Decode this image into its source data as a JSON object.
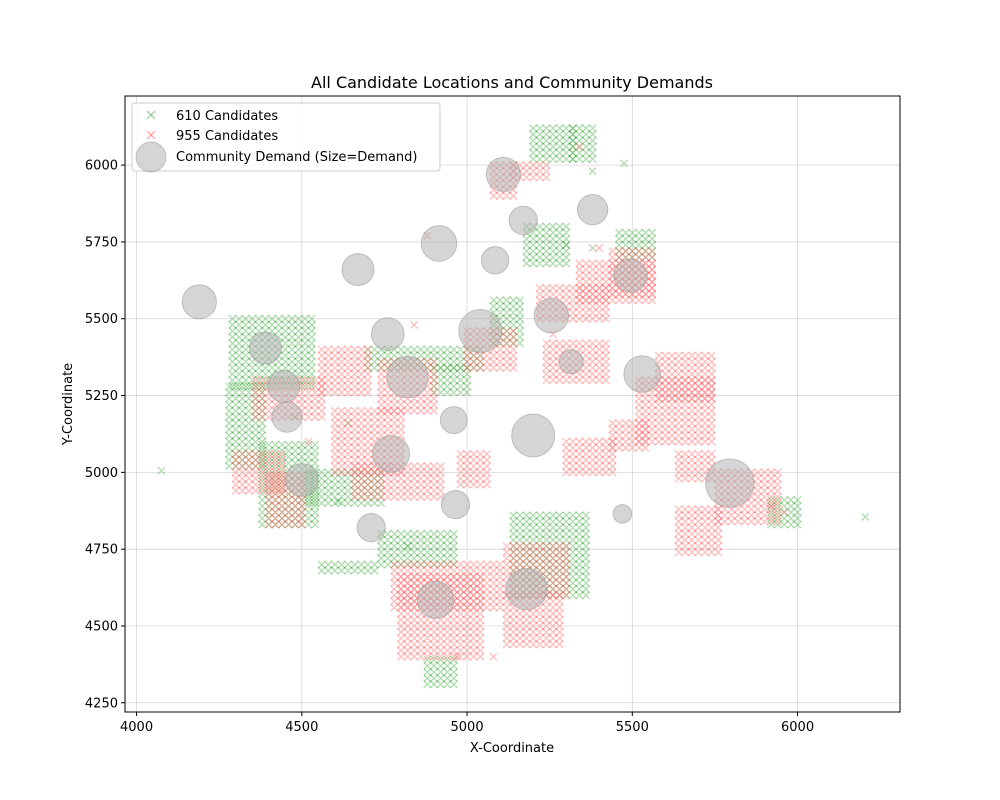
{
  "chart_data": {
    "type": "scatter",
    "title": "All Candidate Locations and Community Demands",
    "xlabel": "X-Coordinate",
    "ylabel": "Y-Coordinate",
    "xlim": [
      3965,
      6310
    ],
    "ylim": [
      4220,
      6225
    ],
    "x_ticks": [
      4000,
      4500,
      5000,
      5500,
      6000
    ],
    "y_ticks": [
      4250,
      4500,
      4750,
      5000,
      5250,
      5500,
      5750,
      6000
    ],
    "grid": true,
    "legend_position": "top-left",
    "legend": [
      {
        "label": "610 Candidates",
        "marker": "x",
        "color": "#2ca02c"
      },
      {
        "label": "955 Candidates",
        "marker": "x",
        "color": "#ff6666"
      },
      {
        "label": "Community Demand (Size=Demand)",
        "marker": "circle",
        "color": "#b3b3b3"
      }
    ],
    "grid_step": 20,
    "series": [
      {
        "name": "610 Candidates",
        "marker": "x",
        "color": "#2ca02c",
        "alpha": 0.35,
        "regions": [
          {
            "x": [
              4290,
              4540
            ],
            "y": [
              5280,
              5500
            ]
          },
          {
            "x": [
              4280,
              4380
            ],
            "y": [
              5020,
              5280
            ]
          },
          {
            "x": [
              4380,
              4540
            ],
            "y": [
              4830,
              5100
            ]
          },
          {
            "x": [
              4520,
              4740
            ],
            "y": [
              4900,
              5000
            ]
          },
          {
            "x": [
              4560,
              4720
            ],
            "y": [
              4680,
              4700
            ]
          },
          {
            "x": [
              4740,
              4960
            ],
            "y": [
              4700,
              4800
            ]
          },
          {
            "x": [
              4700,
              5040
            ],
            "y": [
              5340,
              5400
            ]
          },
          {
            "x": [
              4900,
              5000
            ],
            "y": [
              5260,
              5340
            ]
          },
          {
            "x": [
              5080,
              5160
            ],
            "y": [
              5420,
              5560
            ]
          },
          {
            "x": [
              5140,
              5360
            ],
            "y": [
              4600,
              4860
            ]
          },
          {
            "x": [
              4880,
              4960
            ],
            "y": [
              4310,
              4400
            ]
          },
          {
            "x": [
              5200,
              5320
            ],
            "y": [
              6020,
              6130
            ]
          },
          {
            "x": [
              5320,
              5380
            ],
            "y": [
              6020,
              6130
            ]
          },
          {
            "x": [
              5180,
              5300
            ],
            "y": [
              5680,
              5800
            ]
          },
          {
            "x": [
              5460,
              5560
            ],
            "y": [
              5700,
              5780
            ]
          },
          {
            "x": [
              5920,
              6000
            ],
            "y": [
              4830,
              4910
            ]
          }
        ],
        "points": [
          [
            4075,
            5005
          ],
          [
            6205,
            4855
          ],
          [
            5475,
            6005
          ],
          [
            5380,
            5980
          ],
          [
            5300,
            5740
          ],
          [
            5380,
            5730
          ],
          [
            4640,
            5160
          ],
          [
            4610,
            4905
          ],
          [
            4820,
            4760
          ],
          [
            4480,
            5180
          ]
        ]
      },
      {
        "name": "955 Candidates",
        "marker": "x",
        "color": "#ff6666",
        "alpha": 0.4,
        "regions": [
          {
            "x": [
              4400,
              4500
            ],
            "y": [
              4830,
              5000
            ]
          },
          {
            "x": [
              4300,
              4440
            ],
            "y": [
              4940,
              5060
            ]
          },
          {
            "x": [
              4360,
              4560
            ],
            "y": [
              5180,
              5300
            ]
          },
          {
            "x": [
              4560,
              4700
            ],
            "y": [
              5260,
              5400
            ]
          },
          {
            "x": [
              4600,
              4800
            ],
            "y": [
              5000,
              5200
            ]
          },
          {
            "x": [
              4660,
              4920
            ],
            "y": [
              4920,
              5020
            ]
          },
          {
            "x": [
              4740,
              4900
            ],
            "y": [
              5200,
              5360
            ]
          },
          {
            "x": [
              5000,
              5140
            ],
            "y": [
              5340,
              5460
            ]
          },
          {
            "x": [
              4980,
              5060
            ],
            "y": [
              4960,
              5060
            ]
          },
          {
            "x": [
              4800,
              5040
            ],
            "y": [
              4400,
              4660
            ]
          },
          {
            "x": [
              4780,
              5100
            ],
            "y": [
              4560,
              4700
            ]
          },
          {
            "x": [
              5120,
              5300
            ],
            "y": [
              4600,
              4760
            ]
          },
          {
            "x": [
              5120,
              5280
            ],
            "y": [
              4440,
              4600
            ]
          },
          {
            "x": [
              5240,
              5420
            ],
            "y": [
              5300,
              5420
            ]
          },
          {
            "x": [
              5220,
              5420
            ],
            "y": [
              5500,
              5600
            ]
          },
          {
            "x": [
              5340,
              5560
            ],
            "y": [
              5560,
              5680
            ]
          },
          {
            "x": [
              5440,
              5560
            ],
            "y": [
              5580,
              5720
            ]
          },
          {
            "x": [
              5300,
              5440
            ],
            "y": [
              5000,
              5100
            ]
          },
          {
            "x": [
              5440,
              5540
            ],
            "y": [
              5080,
              5160
            ]
          },
          {
            "x": [
              5520,
              5740
            ],
            "y": [
              5100,
              5300
            ]
          },
          {
            "x": [
              5580,
              5740
            ],
            "y": [
              5240,
              5380
            ]
          },
          {
            "x": [
              5640,
              5740
            ],
            "y": [
              4980,
              5060
            ]
          },
          {
            "x": [
              5640,
              5760
            ],
            "y": [
              4740,
              4880
            ]
          },
          {
            "x": [
              5760,
              5940
            ],
            "y": [
              4840,
              5000
            ]
          },
          {
            "x": [
              5080,
              5140
            ],
            "y": [
              5900,
              6000
            ]
          },
          {
            "x": [
              5140,
              5240
            ],
            "y": [
              5960,
              6000
            ]
          }
        ],
        "points": [
          [
            4880,
            5770
          ],
          [
            5340,
            6060
          ],
          [
            5400,
            5730
          ],
          [
            4840,
            5480
          ],
          [
            4520,
            5100
          ],
          [
            4970,
            4400
          ],
          [
            5080,
            4400
          ],
          [
            5920,
            4890
          ],
          [
            5960,
            4870
          ],
          [
            5260,
            5450
          ]
        ]
      }
    ],
    "demand": [
      {
        "x": 4190,
        "y": 5555,
        "size": 480
      },
      {
        "x": 4390,
        "y": 5405,
        "size": 420
      },
      {
        "x": 4445,
        "y": 5280,
        "size": 420
      },
      {
        "x": 4455,
        "y": 5180,
        "size": 380
      },
      {
        "x": 4500,
        "y": 4975,
        "size": 440
      },
      {
        "x": 4670,
        "y": 5660,
        "size": 420
      },
      {
        "x": 4760,
        "y": 5450,
        "size": 440
      },
      {
        "x": 4820,
        "y": 5310,
        "size": 700
      },
      {
        "x": 4770,
        "y": 5060,
        "size": 560
      },
      {
        "x": 4710,
        "y": 4820,
        "size": 330
      },
      {
        "x": 4905,
        "y": 4585,
        "size": 560
      },
      {
        "x": 4915,
        "y": 5745,
        "size": 520
      },
      {
        "x": 4960,
        "y": 5170,
        "size": 300
      },
      {
        "x": 4965,
        "y": 4895,
        "size": 330
      },
      {
        "x": 5040,
        "y": 5460,
        "size": 760
      },
      {
        "x": 5085,
        "y": 5690,
        "size": 310
      },
      {
        "x": 5110,
        "y": 5970,
        "size": 480
      },
      {
        "x": 5170,
        "y": 5820,
        "size": 330
      },
      {
        "x": 5200,
        "y": 5120,
        "size": 760
      },
      {
        "x": 5180,
        "y": 4620,
        "size": 700
      },
      {
        "x": 5255,
        "y": 5510,
        "size": 490
      },
      {
        "x": 5315,
        "y": 5360,
        "size": 240
      },
      {
        "x": 5380,
        "y": 5855,
        "size": 380
      },
      {
        "x": 5495,
        "y": 5640,
        "size": 450
      },
      {
        "x": 5530,
        "y": 5320,
        "size": 550
      },
      {
        "x": 5470,
        "y": 4865,
        "size": 140
      },
      {
        "x": 5795,
        "y": 4965,
        "size": 960
      }
    ]
  }
}
